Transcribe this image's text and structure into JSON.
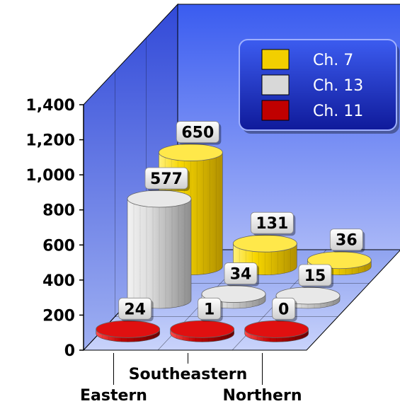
{
  "chart_data": {
    "type": "bar",
    "categories": [
      "Eastern",
      "Southeastern",
      "Northern"
    ],
    "series": [
      {
        "name": "Ch. 7",
        "color": "#f2cf00",
        "values": [
          650,
          131,
          36
        ]
      },
      {
        "name": "Ch. 13",
        "color": "#d8d8d8",
        "values": [
          577,
          34,
          15
        ]
      },
      {
        "name": "Ch. 11",
        "color": "#c00000",
        "values": [
          24,
          1,
          0
        ]
      }
    ],
    "y_ticks": [
      "0",
      "200",
      "400",
      "600",
      "800",
      "1,000",
      "1,200",
      "1,400"
    ],
    "ylim": [
      0,
      1400
    ],
    "grid": true,
    "legend_position": "top-right",
    "style": "3d-cylinder",
    "colors": {
      "back_wall": "#4d6df0",
      "legend_bg": "#1a2fc0"
    }
  }
}
